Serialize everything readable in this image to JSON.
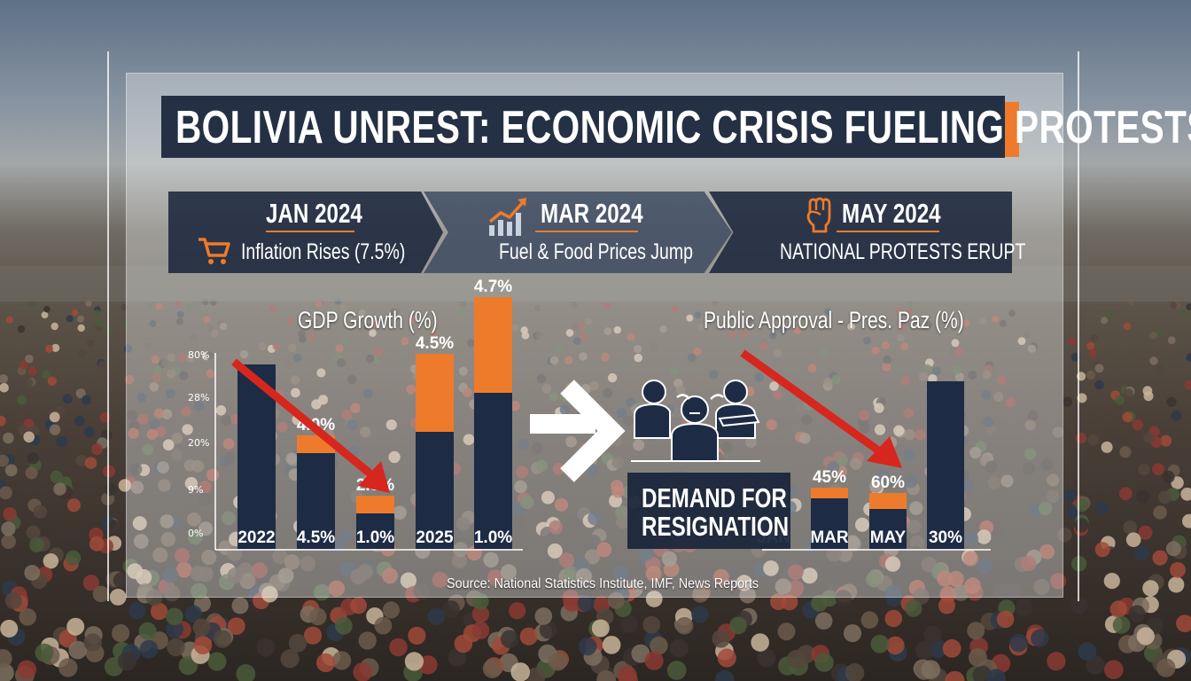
{
  "title": "BOLIVIA UNREST: ECONOMIC CRISIS FUELING PROTESTS",
  "timeline": [
    {
      "date": "JAN 2024",
      "label": "Inflation Rises (7.5%)",
      "icon": "shopping-cart-icon"
    },
    {
      "date": "MAR 2024",
      "label": "Fuel & Food Prices Jump",
      "icon": "rising-chart-icon"
    },
    {
      "date": "MAY 2024",
      "label": "NATIONAL PROTESTS ERUPT",
      "icon": "raised-fist-icon"
    }
  ],
  "demand": {
    "line1": "DEMAND FOR",
    "line2": "RESIGNATION",
    "icon": "protesters-icon"
  },
  "source": "Source: National Statistics Institute, IMF, News Reports",
  "colors": {
    "navy": "#1d2b45",
    "orange": "#ee7b2b",
    "arrow_red": "#d7261e"
  },
  "chart_data": [
    {
      "type": "bar",
      "title": "GDP Growth (%)",
      "ytick_labels": [
        "80%",
        "28%",
        "20%",
        "9%",
        "0%"
      ],
      "ylim": [
        0,
        8
      ],
      "categories": [
        "2022",
        "4.5%",
        "1.0%",
        "2025",
        "1.0%"
      ],
      "series": [
        {
          "values": [
            5.2,
            2.7,
            1.0,
            3.3,
            4.4
          ]
        },
        {
          "values": [
            0,
            0.5,
            0.5,
            2.2,
            2.7
          ]
        }
      ],
      "data_labels": [
        "",
        "4.0%",
        "2.5%",
        "4.5%",
        "4.7%"
      ],
      "trend_arrow": "red, downward from first bar to third bar"
    },
    {
      "type": "bar",
      "title": "Public Approval - Pres. Paz (%)",
      "categories": [
        "JAN",
        "MAR",
        "MAY",
        "30%"
      ],
      "series": [
        {
          "values": [
            0,
            19,
            15,
            63
          ]
        },
        {
          "values": [
            0,
            4,
            6,
            0
          ]
        }
      ],
      "data_labels": [
        "",
        "45%",
        "60%",
        ""
      ],
      "trend_arrow": "red, downward toward MAY bar"
    }
  ]
}
